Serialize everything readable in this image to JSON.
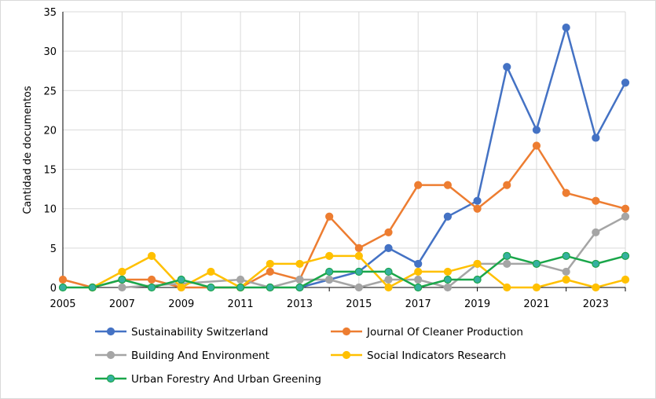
{
  "chart_data": {
    "type": "line",
    "title": "",
    "xlabel": "",
    "ylabel": "Cantidad de documentos",
    "x": [
      2005,
      2006,
      2007,
      2008,
      2009,
      2010,
      2011,
      2012,
      2013,
      2014,
      2015,
      2016,
      2017,
      2018,
      2019,
      2020,
      2021,
      2022,
      2023,
      2024
    ],
    "x_tick_labels": [
      "2005",
      "2007",
      "2009",
      "2011",
      "2013",
      "2015",
      "2017",
      "2019",
      "2021",
      "2023"
    ],
    "x_tick_values": [
      2005,
      2007,
      2009,
      2011,
      2013,
      2015,
      2017,
      2019,
      2021,
      2023
    ],
    "y_ticks": [
      0,
      5,
      10,
      15,
      20,
      25,
      30,
      35
    ],
    "ylim": [
      0,
      35
    ],
    "xlim": [
      2005,
      2024
    ],
    "grid": true,
    "legend_position": "bottom",
    "series": [
      {
        "name": "Sustainability Switzerland",
        "color": "#4472C4",
        "points": [
          [
            2013,
            0
          ],
          [
            2014,
            1
          ],
          [
            2015,
            2
          ],
          [
            2016,
            5
          ],
          [
            2017,
            3
          ],
          [
            2018,
            9
          ],
          [
            2019,
            11
          ],
          [
            2020,
            28
          ],
          [
            2021,
            20
          ],
          [
            2022,
            33
          ],
          [
            2023,
            19
          ],
          [
            2024,
            26
          ]
        ]
      },
      {
        "name": "Journal Of Cleaner Production",
        "color": "#ED7D31",
        "points": [
          [
            2005,
            1
          ],
          [
            2006,
            0
          ],
          [
            2007,
            1
          ],
          [
            2008,
            1
          ],
          [
            2009,
            0
          ],
          [
            2011,
            0
          ],
          [
            2012,
            2
          ],
          [
            2013,
            1
          ],
          [
            2014,
            9
          ],
          [
            2015,
            5
          ],
          [
            2016,
            7
          ],
          [
            2017,
            13
          ],
          [
            2018,
            13
          ],
          [
            2019,
            10
          ],
          [
            2020,
            13
          ],
          [
            2021,
            18
          ],
          [
            2022,
            12
          ],
          [
            2023,
            11
          ],
          [
            2024,
            10
          ]
        ]
      },
      {
        "name": "Building And Environment",
        "color": "#A5A5A5",
        "points": [
          [
            2007,
            0
          ],
          [
            2011,
            1
          ],
          [
            2012,
            0
          ],
          [
            2013,
            1
          ],
          [
            2014,
            1
          ],
          [
            2015,
            0
          ],
          [
            2016,
            1
          ],
          [
            2017,
            1
          ],
          [
            2018,
            0
          ],
          [
            2019,
            3
          ],
          [
            2020,
            3
          ],
          [
            2021,
            3
          ],
          [
            2022,
            2
          ],
          [
            2023,
            7
          ],
          [
            2024,
            9
          ]
        ]
      },
      {
        "name": "Social Indicators Research",
        "color": "#FFC000",
        "points": [
          [
            2006,
            0
          ],
          [
            2007,
            2
          ],
          [
            2008,
            4
          ],
          [
            2009,
            0
          ],
          [
            2010,
            2
          ],
          [
            2011,
            0
          ],
          [
            2012,
            3
          ],
          [
            2013,
            3
          ],
          [
            2014,
            4
          ],
          [
            2015,
            4
          ],
          [
            2016,
            0
          ],
          [
            2017,
            2
          ],
          [
            2018,
            2
          ],
          [
            2019,
            3
          ],
          [
            2020,
            0
          ],
          [
            2021,
            0
          ],
          [
            2022,
            1
          ],
          [
            2023,
            0
          ],
          [
            2024,
            1
          ]
        ]
      },
      {
        "name": "Urban Forestry And Urban Greening",
        "color": "#1AA64A",
        "marker_fill": "#36B0A0",
        "points": [
          [
            2005,
            0
          ],
          [
            2006,
            0
          ],
          [
            2007,
            1
          ],
          [
            2008,
            0
          ],
          [
            2009,
            1
          ],
          [
            2010,
            0
          ],
          [
            2011,
            0
          ],
          [
            2012,
            0
          ],
          [
            2013,
            0
          ],
          [
            2014,
            2
          ],
          [
            2015,
            2
          ],
          [
            2016,
            2
          ],
          [
            2017,
            0
          ],
          [
            2018,
            1
          ],
          [
            2019,
            1
          ],
          [
            2020,
            4
          ],
          [
            2021,
            3
          ],
          [
            2022,
            4
          ],
          [
            2023,
            3
          ],
          [
            2024,
            4
          ]
        ]
      }
    ]
  }
}
